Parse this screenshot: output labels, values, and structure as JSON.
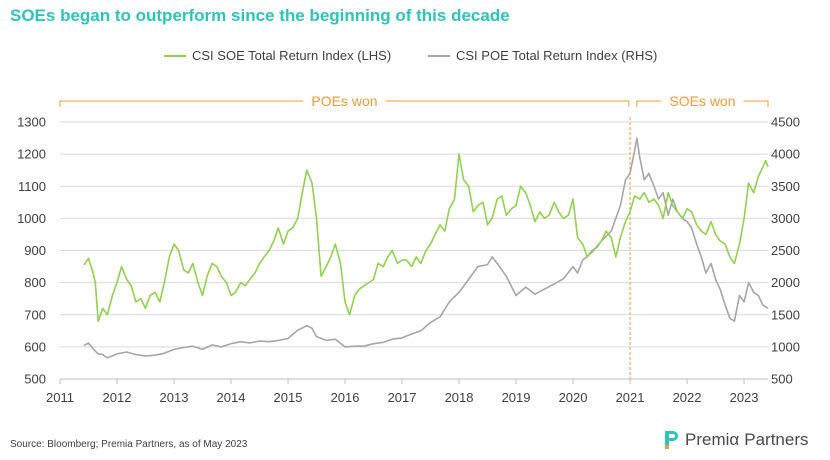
{
  "title": "SOEs began to outperform since the beginning of this decade",
  "source": "Source: Bloomberg; Premia Partners, as of May 2023",
  "logo": {
    "name1": "Premiα",
    "name2": "Partners"
  },
  "colors": {
    "soe": "#92d050",
    "poe": "#a6a6a6",
    "accent": "#f29a3d",
    "grid": "#d9d9d9",
    "title": "#2ec4b6"
  },
  "chart_data": {
    "type": "line",
    "legend_position": "top",
    "grid": true,
    "x_ticks": [
      "2011",
      "2012",
      "2013",
      "2014",
      "2015",
      "2016",
      "2017",
      "2018",
      "2019",
      "2020",
      "2021",
      "2022",
      "2023"
    ],
    "xlim": [
      2011,
      2023.42
    ],
    "y_left": {
      "label": "",
      "lim": [
        500,
        1300
      ],
      "ticks": [
        "500",
        "600",
        "700",
        "800",
        "900",
        "1000",
        "1100",
        "1200",
        "1300"
      ]
    },
    "y_right": {
      "label": "",
      "lim": [
        500,
        4500
      ],
      "ticks": [
        "500",
        "1000",
        "1500",
        "2000",
        "2500",
        "3000",
        "3500",
        "4000",
        "4500"
      ]
    },
    "annotations": [
      {
        "text": "POEs won",
        "from": 2011,
        "to": 2020.98
      },
      {
        "text": "SOEs won",
        "from": 2021.12,
        "to": 2023.42
      }
    ],
    "divider_x": 2021.0,
    "series": [
      {
        "name": "CSI SOE Total Return Index (LHS)",
        "axis": "left",
        "points": [
          [
            2011.42,
            855
          ],
          [
            2011.5,
            875
          ],
          [
            2011.58,
            830
          ],
          [
            2011.62,
            800
          ],
          [
            2011.67,
            680
          ],
          [
            2011.75,
            720
          ],
          [
            2011.83,
            700
          ],
          [
            2011.92,
            760
          ],
          [
            2012.0,
            800
          ],
          [
            2012.08,
            850
          ],
          [
            2012.17,
            810
          ],
          [
            2012.25,
            790
          ],
          [
            2012.33,
            740
          ],
          [
            2012.42,
            750
          ],
          [
            2012.5,
            720
          ],
          [
            2012.58,
            760
          ],
          [
            2012.67,
            770
          ],
          [
            2012.75,
            740
          ],
          [
            2012.83,
            800
          ],
          [
            2012.92,
            880
          ],
          [
            2013.0,
            920
          ],
          [
            2013.08,
            900
          ],
          [
            2013.17,
            840
          ],
          [
            2013.25,
            830
          ],
          [
            2013.33,
            860
          ],
          [
            2013.42,
            800
          ],
          [
            2013.5,
            760
          ],
          [
            2013.58,
            820
          ],
          [
            2013.67,
            860
          ],
          [
            2013.75,
            850
          ],
          [
            2013.83,
            820
          ],
          [
            2013.92,
            800
          ],
          [
            2014.0,
            760
          ],
          [
            2014.08,
            770
          ],
          [
            2014.17,
            800
          ],
          [
            2014.25,
            790
          ],
          [
            2014.33,
            810
          ],
          [
            2014.42,
            830
          ],
          [
            2014.5,
            860
          ],
          [
            2014.58,
            880
          ],
          [
            2014.67,
            900
          ],
          [
            2014.75,
            930
          ],
          [
            2014.83,
            970
          ],
          [
            2014.92,
            920
          ],
          [
            2015.0,
            960
          ],
          [
            2015.08,
            970
          ],
          [
            2015.17,
            1000
          ],
          [
            2015.25,
            1080
          ],
          [
            2015.33,
            1150
          ],
          [
            2015.42,
            1110
          ],
          [
            2015.5,
            1000
          ],
          [
            2015.58,
            820
          ],
          [
            2015.67,
            850
          ],
          [
            2015.75,
            880
          ],
          [
            2015.83,
            920
          ],
          [
            2015.92,
            860
          ],
          [
            2016.0,
            740
          ],
          [
            2016.08,
            700
          ],
          [
            2016.17,
            760
          ],
          [
            2016.25,
            780
          ],
          [
            2016.33,
            790
          ],
          [
            2016.42,
            800
          ],
          [
            2016.5,
            810
          ],
          [
            2016.58,
            860
          ],
          [
            2016.67,
            850
          ],
          [
            2016.75,
            880
          ],
          [
            2016.83,
            900
          ],
          [
            2016.92,
            860
          ],
          [
            2017.0,
            870
          ],
          [
            2017.08,
            870
          ],
          [
            2017.17,
            850
          ],
          [
            2017.25,
            880
          ],
          [
            2017.33,
            860
          ],
          [
            2017.42,
            900
          ],
          [
            2017.5,
            920
          ],
          [
            2017.58,
            950
          ],
          [
            2017.67,
            980
          ],
          [
            2017.75,
            960
          ],
          [
            2017.83,
            1030
          ],
          [
            2017.92,
            1060
          ],
          [
            2018.0,
            1200
          ],
          [
            2018.08,
            1120
          ],
          [
            2018.17,
            1100
          ],
          [
            2018.25,
            1020
          ],
          [
            2018.33,
            1040
          ],
          [
            2018.42,
            1050
          ],
          [
            2018.5,
            980
          ],
          [
            2018.58,
            1000
          ],
          [
            2018.67,
            1060
          ],
          [
            2018.75,
            1070
          ],
          [
            2018.83,
            1010
          ],
          [
            2018.92,
            1030
          ],
          [
            2019.0,
            1040
          ],
          [
            2019.08,
            1100
          ],
          [
            2019.17,
            1080
          ],
          [
            2019.25,
            1040
          ],
          [
            2019.33,
            990
          ],
          [
            2019.42,
            1020
          ],
          [
            2019.5,
            1000
          ],
          [
            2019.58,
            1010
          ],
          [
            2019.67,
            1050
          ],
          [
            2019.75,
            1020
          ],
          [
            2019.83,
            1000
          ],
          [
            2019.92,
            1010
          ],
          [
            2020.0,
            1060
          ],
          [
            2020.08,
            940
          ],
          [
            2020.17,
            920
          ],
          [
            2020.25,
            880
          ],
          [
            2020.33,
            900
          ],
          [
            2020.42,
            910
          ],
          [
            2020.5,
            930
          ],
          [
            2020.58,
            960
          ],
          [
            2020.67,
            940
          ],
          [
            2020.75,
            880
          ],
          [
            2020.83,
            940
          ],
          [
            2020.92,
            990
          ],
          [
            2021.0,
            1020
          ],
          [
            2021.08,
            1070
          ],
          [
            2021.17,
            1060
          ],
          [
            2021.25,
            1080
          ],
          [
            2021.33,
            1050
          ],
          [
            2021.42,
            1060
          ],
          [
            2021.5,
            1040
          ],
          [
            2021.58,
            1000
          ],
          [
            2021.67,
            1080
          ],
          [
            2021.75,
            1040
          ],
          [
            2021.83,
            1020
          ],
          [
            2021.92,
            1000
          ],
          [
            2022.0,
            1030
          ],
          [
            2022.08,
            1020
          ],
          [
            2022.17,
            980
          ],
          [
            2022.25,
            960
          ],
          [
            2022.33,
            950
          ],
          [
            2022.42,
            990
          ],
          [
            2022.5,
            950
          ],
          [
            2022.58,
            930
          ],
          [
            2022.67,
            920
          ],
          [
            2022.75,
            880
          ],
          [
            2022.83,
            860
          ],
          [
            2022.92,
            920
          ],
          [
            2023.0,
            1000
          ],
          [
            2023.08,
            1110
          ],
          [
            2023.17,
            1080
          ],
          [
            2023.25,
            1130
          ],
          [
            2023.33,
            1160
          ],
          [
            2023.38,
            1180
          ],
          [
            2023.42,
            1160
          ]
        ]
      },
      {
        "name": "CSI POE Total Return Index (RHS)",
        "axis": "right",
        "points": [
          [
            2011.42,
            1020
          ],
          [
            2011.5,
            1060
          ],
          [
            2011.58,
            970
          ],
          [
            2011.67,
            890
          ],
          [
            2011.75,
            880
          ],
          [
            2011.83,
            830
          ],
          [
            2011.92,
            860
          ],
          [
            2012.0,
            890
          ],
          [
            2012.17,
            920
          ],
          [
            2012.33,
            880
          ],
          [
            2012.5,
            860
          ],
          [
            2012.67,
            870
          ],
          [
            2012.83,
            900
          ],
          [
            2013.0,
            960
          ],
          [
            2013.17,
            990
          ],
          [
            2013.33,
            1010
          ],
          [
            2013.5,
            960
          ],
          [
            2013.67,
            1030
          ],
          [
            2013.83,
            1000
          ],
          [
            2014.0,
            1050
          ],
          [
            2014.17,
            1080
          ],
          [
            2014.33,
            1060
          ],
          [
            2014.5,
            1090
          ],
          [
            2014.67,
            1080
          ],
          [
            2014.83,
            1100
          ],
          [
            2015.0,
            1130
          ],
          [
            2015.17,
            1260
          ],
          [
            2015.33,
            1330
          ],
          [
            2015.42,
            1290
          ],
          [
            2015.5,
            1160
          ],
          [
            2015.67,
            1100
          ],
          [
            2015.83,
            1120
          ],
          [
            2016.0,
            1000
          ],
          [
            2016.17,
            1010
          ],
          [
            2016.33,
            1010
          ],
          [
            2016.5,
            1050
          ],
          [
            2016.67,
            1070
          ],
          [
            2016.83,
            1120
          ],
          [
            2017.0,
            1140
          ],
          [
            2017.17,
            1200
          ],
          [
            2017.33,
            1250
          ],
          [
            2017.5,
            1380
          ],
          [
            2017.67,
            1470
          ],
          [
            2017.83,
            1700
          ],
          [
            2018.0,
            1850
          ],
          [
            2018.17,
            2050
          ],
          [
            2018.33,
            2250
          ],
          [
            2018.5,
            2280
          ],
          [
            2018.58,
            2400
          ],
          [
            2018.67,
            2300
          ],
          [
            2018.75,
            2200
          ],
          [
            2018.83,
            2100
          ],
          [
            2019.0,
            1800
          ],
          [
            2019.17,
            1930
          ],
          [
            2019.33,
            1820
          ],
          [
            2019.5,
            1900
          ],
          [
            2019.67,
            1980
          ],
          [
            2019.83,
            2060
          ],
          [
            2020.0,
            2250
          ],
          [
            2020.08,
            2150
          ],
          [
            2020.17,
            2350
          ],
          [
            2020.33,
            2470
          ],
          [
            2020.5,
            2650
          ],
          [
            2020.67,
            2800
          ],
          [
            2020.83,
            3200
          ],
          [
            2020.92,
            3600
          ],
          [
            2021.0,
            3700
          ],
          [
            2021.08,
            4050
          ],
          [
            2021.12,
            4250
          ],
          [
            2021.17,
            3950
          ],
          [
            2021.25,
            3600
          ],
          [
            2021.33,
            3700
          ],
          [
            2021.42,
            3500
          ],
          [
            2021.5,
            3300
          ],
          [
            2021.58,
            3400
          ],
          [
            2021.67,
            3050
          ],
          [
            2021.75,
            3300
          ],
          [
            2021.83,
            3100
          ],
          [
            2021.92,
            3000
          ],
          [
            2022.0,
            2950
          ],
          [
            2022.08,
            2850
          ],
          [
            2022.17,
            2600
          ],
          [
            2022.25,
            2400
          ],
          [
            2022.33,
            2150
          ],
          [
            2022.42,
            2300
          ],
          [
            2022.5,
            2050
          ],
          [
            2022.58,
            1900
          ],
          [
            2022.67,
            1650
          ],
          [
            2022.75,
            1450
          ],
          [
            2022.83,
            1400
          ],
          [
            2022.92,
            1800
          ],
          [
            2023.0,
            1700
          ],
          [
            2023.08,
            2000
          ],
          [
            2023.17,
            1850
          ],
          [
            2023.25,
            1800
          ],
          [
            2023.33,
            1650
          ],
          [
            2023.42,
            1600
          ]
        ]
      }
    ]
  }
}
